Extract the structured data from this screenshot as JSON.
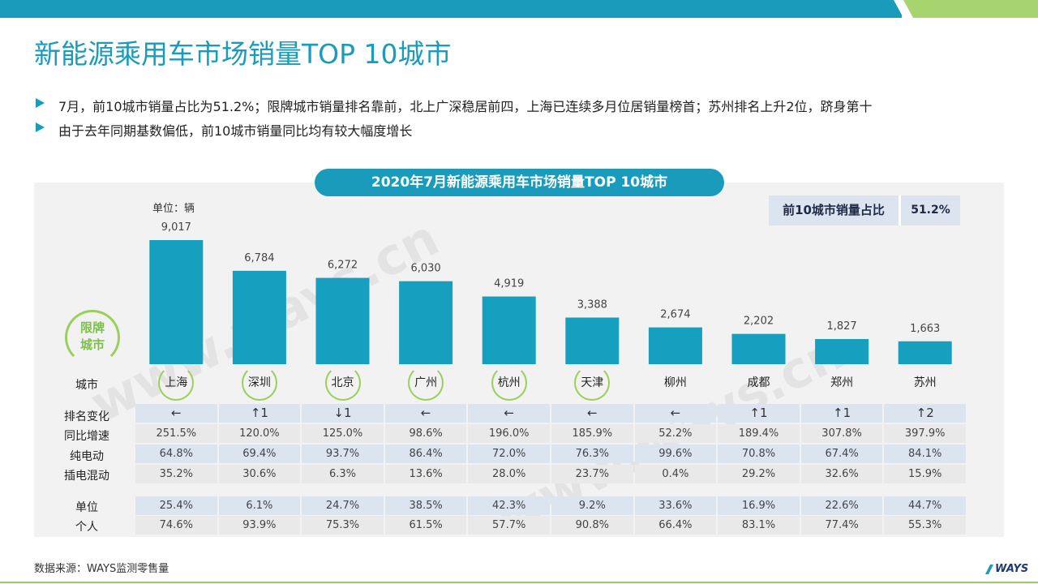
{
  "header": {
    "title": "新能源乘用车市场销量TOP 10城市",
    "bullets": [
      "7月，前10城市销量占比为51.2%；限牌城市销量排名靠前，北上广深稳居前四，上海已连续多月位居销量榜首；苏州排名上升2位，跻身第十",
      "由于去年同期基数偏低，前10城市销量同比均有较大幅度增长"
    ]
  },
  "panel": {
    "title": "2020年7月新能源乘用车市场销量TOP 10城市",
    "share_label": "前10城市销量占比",
    "share_value": "51.2%",
    "unit": "单位：辆",
    "limit_badge": [
      "限牌",
      "城市"
    ]
  },
  "rows": {
    "city": "城市",
    "rank_change": "排名变化",
    "yoy": "同比增速",
    "bev": "纯电动",
    "phev": "插电混动",
    "org": "单位",
    "personal": "个人"
  },
  "chart_data": {
    "type": "bar",
    "title": "2020年7月新能源乘用车市场销量TOP 10城市",
    "ylabel": "单位：辆",
    "categories": [
      "上海",
      "深圳",
      "北京",
      "广州",
      "杭州",
      "天津",
      "柳州",
      "成都",
      "郑州",
      "苏州"
    ],
    "values": [
      9017,
      6784,
      6272,
      6030,
      4919,
      3388,
      2674,
      2202,
      1827,
      1663
    ],
    "value_labels": [
      "9,017",
      "6,784",
      "6,272",
      "6,030",
      "4,919",
      "3,388",
      "2,674",
      "2,202",
      "1,827",
      "1,663"
    ],
    "ylim": [
      0,
      9017
    ],
    "grid": false,
    "limited_cities": [
      true,
      true,
      true,
      true,
      true,
      true,
      false,
      false,
      false,
      false
    ],
    "table": {
      "rank_change": [
        "←",
        "↑1",
        "↓1",
        "←",
        "←",
        "←",
        "←",
        "↑1",
        "↑1",
        "↑2"
      ],
      "yoy": [
        "251.5%",
        "120.0%",
        "125.0%",
        "98.6%",
        "196.0%",
        "185.9%",
        "52.2%",
        "189.4%",
        "307.8%",
        "397.9%"
      ],
      "bev": [
        "64.8%",
        "69.4%",
        "93.7%",
        "86.4%",
        "72.0%",
        "76.3%",
        "99.6%",
        "70.8%",
        "67.4%",
        "84.1%"
      ],
      "phev": [
        "35.2%",
        "30.6%",
        "6.3%",
        "13.6%",
        "28.0%",
        "23.7%",
        "0.4%",
        "29.2%",
        "32.6%",
        "15.9%"
      ],
      "org": [
        "25.4%",
        "6.1%",
        "24.7%",
        "38.5%",
        "42.3%",
        "9.2%",
        "33.6%",
        "16.9%",
        "22.6%",
        "44.7%"
      ],
      "personal": [
        "74.6%",
        "93.9%",
        "75.3%",
        "61.5%",
        "57.7%",
        "90.8%",
        "66.4%",
        "83.1%",
        "77.4%",
        "55.3%"
      ]
    }
  },
  "footer": {
    "source": "数据来源：WAYS监测零售量",
    "logo": "WAYS"
  },
  "watermark": "www.ways.cn",
  "colors": {
    "accent": "#1a9bbb",
    "bar": "#169fbe",
    "green": "#9bcf5c",
    "row_dark": "#dce4ef",
    "row_light": "#e9e9e9"
  }
}
